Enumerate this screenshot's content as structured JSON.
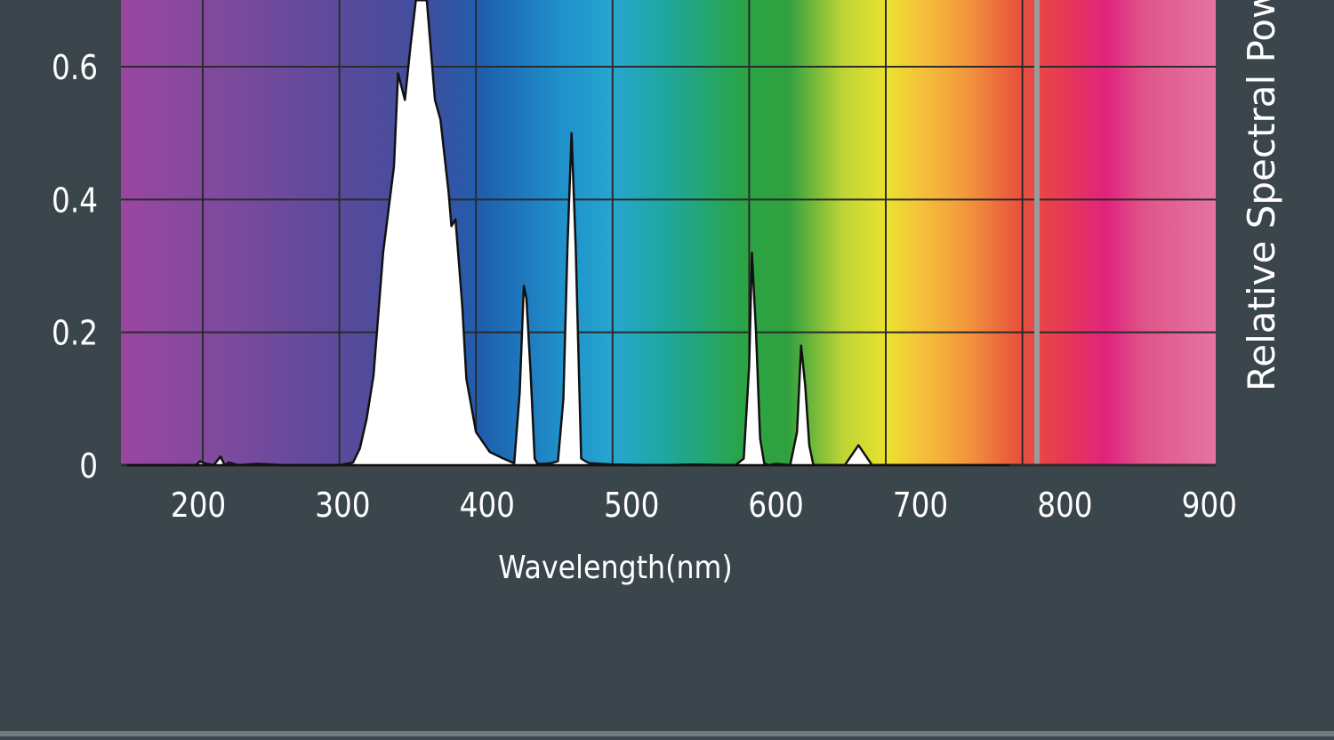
{
  "colors": {
    "background": "#3a464c",
    "grid": "#2b2b2b",
    "fill": "#ffffff",
    "outline": "#111111",
    "text": "#ffffff"
  },
  "chart_data": {
    "type": "area",
    "title": "",
    "xlabel": "Wavelength(nm)",
    "ylabel": "Relative Spectral Power",
    "xlim": [
      145,
      900
    ],
    "ylim": [
      0,
      0.7
    ],
    "xticks": [
      {
        "value": 200,
        "label": "200"
      },
      {
        "value": 300,
        "label": "300"
      },
      {
        "value": 400,
        "label": "400"
      },
      {
        "value": 500,
        "label": "500"
      },
      {
        "value": 600,
        "label": "600"
      },
      {
        "value": 700,
        "label": "700"
      },
      {
        "value": 800,
        "label": "800"
      },
      {
        "value": 900,
        "label": "900"
      }
    ],
    "yticks": [
      {
        "value": 0,
        "label": "0"
      },
      {
        "value": 0.2,
        "label": "0.2"
      },
      {
        "value": 0.4,
        "label": "0.4"
      },
      {
        "value": 0.6,
        "label": "0.6"
      }
    ],
    "grid": true,
    "background": "visible spectrum color gradient",
    "series": [
      {
        "x": [
          145,
          195,
          198,
          201,
          208,
          213,
          216,
          219,
          226,
          240,
          260,
          300,
          310,
          315,
          320,
          325,
          332,
          340,
          343,
          348,
          352,
          356,
          360,
          361,
          364,
          370,
          374,
          380,
          382,
          385,
          390,
          393,
          400,
          410,
          420,
          428,
          432,
          435,
          437,
          440,
          443,
          445,
          450,
          455,
          460,
          464,
          467,
          470,
          473,
          477,
          480,
          483,
          500,
          530,
          560,
          590,
          596,
          600,
          602,
          605,
          608,
          611,
          614,
          620,
          630,
          635,
          638,
          641,
          644,
          647,
          650,
          660,
          670,
          675,
          680,
          685,
          690,
          695,
          700,
          740,
          790
        ],
        "y": [
          0,
          0,
          0.006,
          0.003,
          0,
          0.013,
          0,
          0.004,
          0,
          0.002,
          0,
          0,
          0.004,
          0.025,
          0.07,
          0.135,
          0.32,
          0.45,
          0.59,
          0.55,
          0.63,
          0.7,
          0.7,
          0.7,
          0.7,
          0.55,
          0.52,
          0.41,
          0.36,
          0.37,
          0.24,
          0.13,
          0.05,
          0.02,
          0.01,
          0.003,
          0.11,
          0.27,
          0.25,
          0.14,
          0.01,
          0.002,
          0.002,
          0.003,
          0.006,
          0.1,
          0.33,
          0.5,
          0.33,
          0.01,
          0.006,
          0.003,
          0.001,
          0,
          0.001,
          0,
          0.01,
          0.15,
          0.32,
          0.2,
          0.04,
          0.003,
          0,
          0.002,
          0,
          0.05,
          0.18,
          0.12,
          0.03,
          0,
          0,
          0,
          0,
          0.015,
          0.03,
          0.015,
          0,
          0,
          0,
          0,
          0
        ]
      }
    ]
  }
}
